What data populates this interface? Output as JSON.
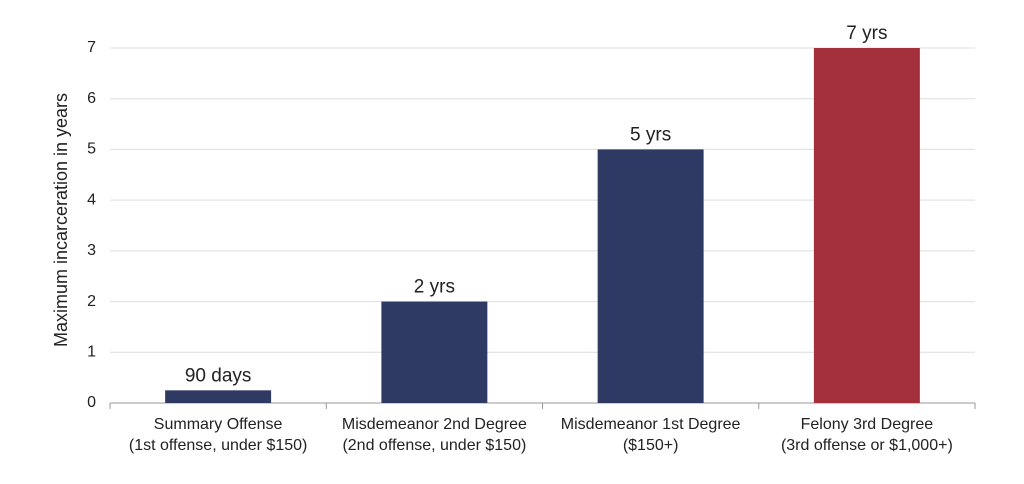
{
  "chart_data": {
    "type": "bar",
    "y_label": "Maximum incarceration in years",
    "categories": [
      [
        "Summary Offense",
        "(1st offense, under $150)"
      ],
      [
        "Misdemeanor 2nd Degree",
        "(2nd offense, under $150)"
      ],
      [
        "Misdemeanor 1st Degree",
        "($150+)"
      ],
      [
        "Felony 3rd Degree",
        "(3rd offense or $1,000+)"
      ]
    ],
    "values": [
      0.25,
      2,
      5,
      7
    ],
    "value_labels": [
      "90 days",
      "2 yrs",
      "5 yrs",
      "7 yrs"
    ],
    "colors": [
      "#2e3a63",
      "#2e3a63",
      "#2e3a63",
      "#a3303a"
    ],
    "ylim": [
      0,
      7
    ],
    "yticks": [
      0,
      1,
      2,
      3,
      4,
      5,
      6,
      7
    ],
    "grid": true
  }
}
